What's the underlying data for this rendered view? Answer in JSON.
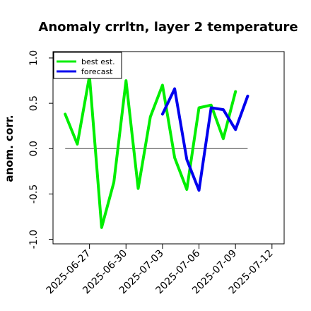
{
  "chart_data": {
    "type": "line",
    "title": "Anomaly crrltn, layer 2 temperature",
    "xlabel": "",
    "ylabel": "anom. corr.",
    "xlim": [
      "2025-06-24",
      "2025-07-13"
    ],
    "ylim": [
      -1.05,
      1.07
    ],
    "yticks": [
      {
        "value": -1.0,
        "label": "-1.0"
      },
      {
        "value": -0.5,
        "label": "-0.5"
      },
      {
        "value": 0.0,
        "label": "0.0"
      },
      {
        "value": 0.5,
        "label": "0.5"
      },
      {
        "value": 1.0,
        "label": "1.0"
      }
    ],
    "xticks": [
      {
        "date": "2025-06-27",
        "label": "2025-06-27",
        "color": "#000000"
      },
      {
        "date": "2025-06-30",
        "label": "2025-06-30",
        "color": "#000000"
      },
      {
        "date": "2025-07-03",
        "label": "2025-07-03",
        "color": "#228b22"
      },
      {
        "date": "2025-07-06",
        "label": "2025-07-06",
        "color": "#000000"
      },
      {
        "date": "2025-07-09",
        "label": "2025-07-09",
        "color": "#000000"
      },
      {
        "date": "2025-07-12",
        "label": "2025-07-12",
        "color": "#000000"
      }
    ],
    "reference_line": 0,
    "grid": false,
    "legend_position": "top-left",
    "series": [
      {
        "name": "best est.",
        "color": "#00ee00",
        "x": [
          "2025-06-25",
          "2025-06-26",
          "2025-06-27",
          "2025-06-28",
          "2025-06-29",
          "2025-06-30",
          "2025-07-01",
          "2025-07-02",
          "2025-07-03",
          "2025-07-04",
          "2025-07-05",
          "2025-07-06",
          "2025-07-07",
          "2025-07-08",
          "2025-07-09",
          "2025-07-10"
        ],
        "y": [
          0.38,
          0.05,
          0.8,
          -0.87,
          -0.37,
          0.75,
          -0.44,
          0.35,
          0.7,
          -0.1,
          -0.45,
          0.45,
          0.48,
          0.11,
          0.63,
          null
        ]
      },
      {
        "name": "forecast",
        "color": "#0000ee",
        "x": [
          "2025-07-03",
          "2025-07-04",
          "2025-07-05",
          "2025-07-06",
          "2025-07-07",
          "2025-07-08",
          "2025-07-09",
          "2025-07-10"
        ],
        "y": [
          0.38,
          0.66,
          -0.12,
          -0.46,
          0.45,
          0.43,
          0.21,
          0.58
        ]
      }
    ]
  }
}
